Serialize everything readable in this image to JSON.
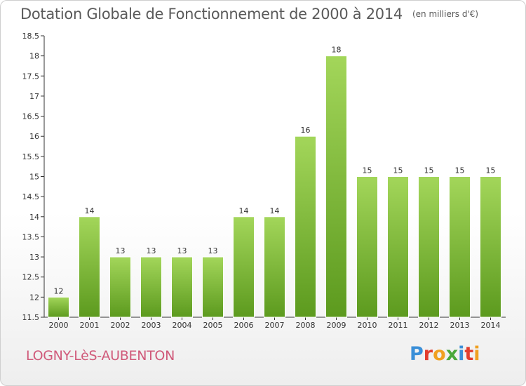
{
  "header": {
    "title": "Dotation Globale de Fonctionnement de 2000 à 2014",
    "subtitle": "(en milliers d'€)"
  },
  "footer": {
    "commune": "LOGNY-LèS-AUBENTON",
    "logo": "Proxiti",
    "logo_colors": [
      "#3a8fd8",
      "#e23d2e",
      "#f0a020",
      "#4aa83a",
      "#3a8fd8",
      "#e23d2e",
      "#f0a020"
    ]
  },
  "chart_data": {
    "type": "bar",
    "categories": [
      "2000",
      "2001",
      "2002",
      "2003",
      "2004",
      "2005",
      "2006",
      "2007",
      "2008",
      "2009",
      "2010",
      "2011",
      "2012",
      "2013",
      "2014"
    ],
    "values": [
      12,
      14,
      13,
      13,
      13,
      13,
      14,
      14,
      16,
      18,
      15,
      15,
      15,
      15,
      15
    ],
    "data_labels": [
      "12",
      "14",
      "13",
      "13",
      "13",
      "13",
      "14",
      "14",
      "16",
      "18",
      "15",
      "15",
      "15",
      "15",
      "15"
    ],
    "title": "Dotation Globale de Fonctionnement de 2000 à 2014",
    "subtitle": "(en milliers d'€)",
    "xlabel": "",
    "ylabel": "",
    "ylim": [
      11.5,
      18.5
    ],
    "yticks": [
      "11.5",
      "12",
      "12.5",
      "13",
      "13.5",
      "14",
      "14.5",
      "15",
      "15.5",
      "16",
      "16.5",
      "17",
      "17.5",
      "18",
      "18.5"
    ],
    "grid": false,
    "legend": "none",
    "colors": {
      "bar_light": "#a3d65a",
      "bar_dark": "#5c9a1e",
      "axis": "#333333"
    }
  }
}
